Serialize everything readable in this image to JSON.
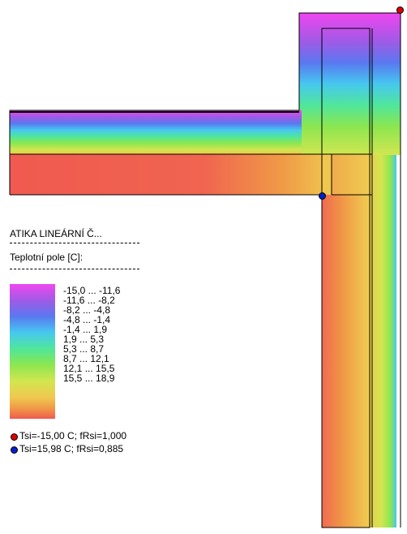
{
  "title": "ATIKA LINEÁRNÍ Č...",
  "field_label": "Teplotní pole [C]:",
  "legend": {
    "colors": [
      "#f046f0",
      "#a05ae6",
      "#5a78f0",
      "#46c8f0",
      "#50e69b",
      "#8ce650",
      "#d2e650",
      "#f0c850",
      "#f09b46",
      "#f05a50"
    ],
    "ranges": [
      "-15,0 ... -11,6",
      "-11,6 ... -8,2",
      "-8,2 ... -4,8",
      "-4,8 ... -1,4",
      "-1,4 ... 1,9",
      "1,9 ... 5,3",
      "5,3 ... 8,7",
      "8,7 ... 12,1",
      "12,1 ... 15,5",
      "15,5 ... 18,9"
    ]
  },
  "points": [
    {
      "label": "Tsi=-15,00 C; fRsi=1,000",
      "color": "#e00000"
    },
    {
      "label": "Tsi=15,98 C; fRsi=0,885",
      "color": "#0020d0"
    }
  ]
}
